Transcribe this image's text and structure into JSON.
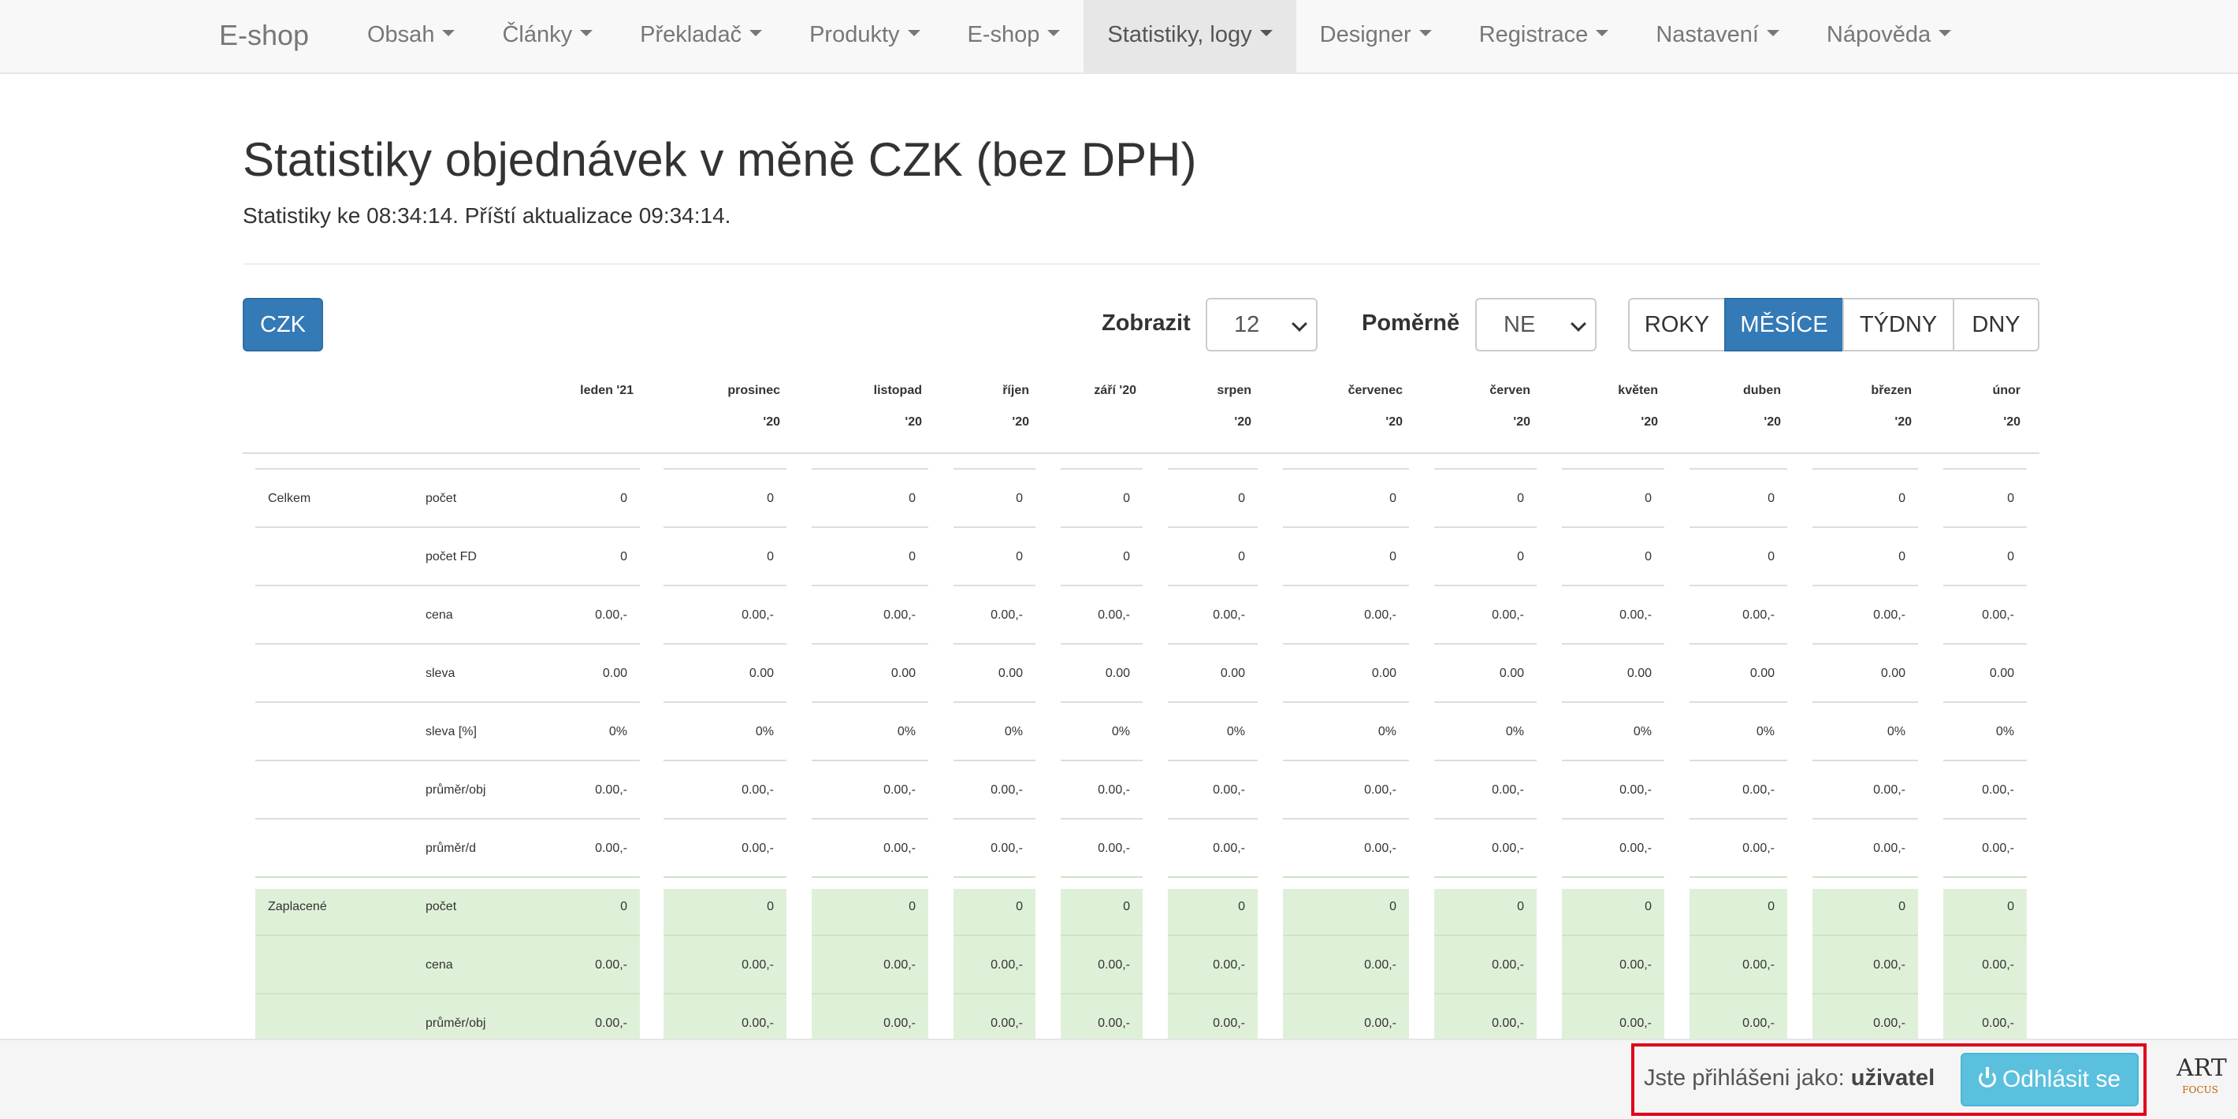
{
  "navbar": {
    "brand": "E-shop",
    "items": [
      {
        "label": "Obsah",
        "active": false
      },
      {
        "label": "Články",
        "active": false
      },
      {
        "label": "Překladač",
        "active": false
      },
      {
        "label": "Produkty",
        "active": false
      },
      {
        "label": "E-shop",
        "active": false
      },
      {
        "label": "Statistiky, logy",
        "active": true
      },
      {
        "label": "Designer",
        "active": false
      },
      {
        "label": "Registrace",
        "active": false
      },
      {
        "label": "Nastavení",
        "active": false
      },
      {
        "label": "Nápověda",
        "active": false
      }
    ]
  },
  "header": {
    "title": "Statistiky objednávek v měně CZK (bez DPH)",
    "subtitle": "Statistiky ke 08:34:14. Příští aktualizace 09:34:14."
  },
  "controls": {
    "currency_button": "CZK",
    "show_label": "Zobrazit",
    "show_value": "12",
    "relative_label": "Poměrně",
    "relative_value": "NE",
    "period_buttons": [
      {
        "label": "ROKY",
        "active": false
      },
      {
        "label": "MĚSÍCE",
        "active": true
      },
      {
        "label": "TÝDNY",
        "active": false
      },
      {
        "label": "DNY",
        "active": false
      }
    ]
  },
  "table": {
    "columns": [
      [
        "leden '21"
      ],
      [
        "prosinec",
        "'20"
      ],
      [
        "listopad",
        "'20"
      ],
      [
        "říjen",
        "'20"
      ],
      [
        "září '20"
      ],
      [
        "srpen",
        "'20"
      ],
      [
        "červenec",
        "'20"
      ],
      [
        "červen",
        "'20"
      ],
      [
        "květen",
        "'20"
      ],
      [
        "duben",
        "'20"
      ],
      [
        "březen",
        "'20"
      ],
      [
        "únor",
        "'20"
      ]
    ],
    "rows": [
      {
        "group": "Celkem",
        "label": "počet",
        "paid": false,
        "values": [
          "0",
          "0",
          "0",
          "0",
          "0",
          "0",
          "0",
          "0",
          "0",
          "0",
          "0",
          "0"
        ]
      },
      {
        "group": "",
        "label": "počet FD",
        "paid": false,
        "values": [
          "0",
          "0",
          "0",
          "0",
          "0",
          "0",
          "0",
          "0",
          "0",
          "0",
          "0",
          "0"
        ]
      },
      {
        "group": "",
        "label": "cena",
        "paid": false,
        "values": [
          "0.00,-",
          "0.00,-",
          "0.00,-",
          "0.00,-",
          "0.00,-",
          "0.00,-",
          "0.00,-",
          "0.00,-",
          "0.00,-",
          "0.00,-",
          "0.00,-",
          "0.00,-"
        ]
      },
      {
        "group": "",
        "label": "sleva",
        "paid": false,
        "values": [
          "0.00",
          "0.00",
          "0.00",
          "0.00",
          "0.00",
          "0.00",
          "0.00",
          "0.00",
          "0.00",
          "0.00",
          "0.00",
          "0.00"
        ]
      },
      {
        "group": "",
        "label": "sleva [%]",
        "paid": false,
        "values": [
          "0%",
          "0%",
          "0%",
          "0%",
          "0%",
          "0%",
          "0%",
          "0%",
          "0%",
          "0%",
          "0%",
          "0%"
        ]
      },
      {
        "group": "",
        "label": "průměr/obj",
        "paid": false,
        "values": [
          "0.00,-",
          "0.00,-",
          "0.00,-",
          "0.00,-",
          "0.00,-",
          "0.00,-",
          "0.00,-",
          "0.00,-",
          "0.00,-",
          "0.00,-",
          "0.00,-",
          "0.00,-"
        ]
      },
      {
        "group": "",
        "label": "průměr/d",
        "paid": false,
        "values": [
          "0.00,-",
          "0.00,-",
          "0.00,-",
          "0.00,-",
          "0.00,-",
          "0.00,-",
          "0.00,-",
          "0.00,-",
          "0.00,-",
          "0.00,-",
          "0.00,-",
          "0.00,-"
        ]
      },
      {
        "group": "Zaplacené",
        "label": "počet",
        "paid": true,
        "values": [
          "0",
          "0",
          "0",
          "0",
          "0",
          "0",
          "0",
          "0",
          "0",
          "0",
          "0",
          "0"
        ]
      },
      {
        "group": "",
        "label": "cena",
        "paid": true,
        "values": [
          "0.00,-",
          "0.00,-",
          "0.00,-",
          "0.00,-",
          "0.00,-",
          "0.00,-",
          "0.00,-",
          "0.00,-",
          "0.00,-",
          "0.00,-",
          "0.00,-",
          "0.00,-"
        ]
      },
      {
        "group": "",
        "label": "průměr/obj",
        "paid": true,
        "values": [
          "0.00,-",
          "0.00,-",
          "0.00,-",
          "0.00,-",
          "0.00,-",
          "0.00,-",
          "0.00,-",
          "0.00,-",
          "0.00,-",
          "0.00,-",
          "0.00,-",
          "0.00,-"
        ]
      }
    ]
  },
  "footer": {
    "logged_in_text": "Jste přihlášeni jako:",
    "username": "uživatel",
    "logout_label": "Odhlásit se",
    "logo_text": "ART",
    "logo_subtext": "FOCUS"
  },
  "colors": {
    "primary": "#337ab7",
    "info": "#5bc0de",
    "paid_row_bg": "#dff0d8",
    "highlight_border": "#e0001b"
  },
  "icons": {
    "logout": "power-icon",
    "dropdown": "caret-down-icon"
  }
}
